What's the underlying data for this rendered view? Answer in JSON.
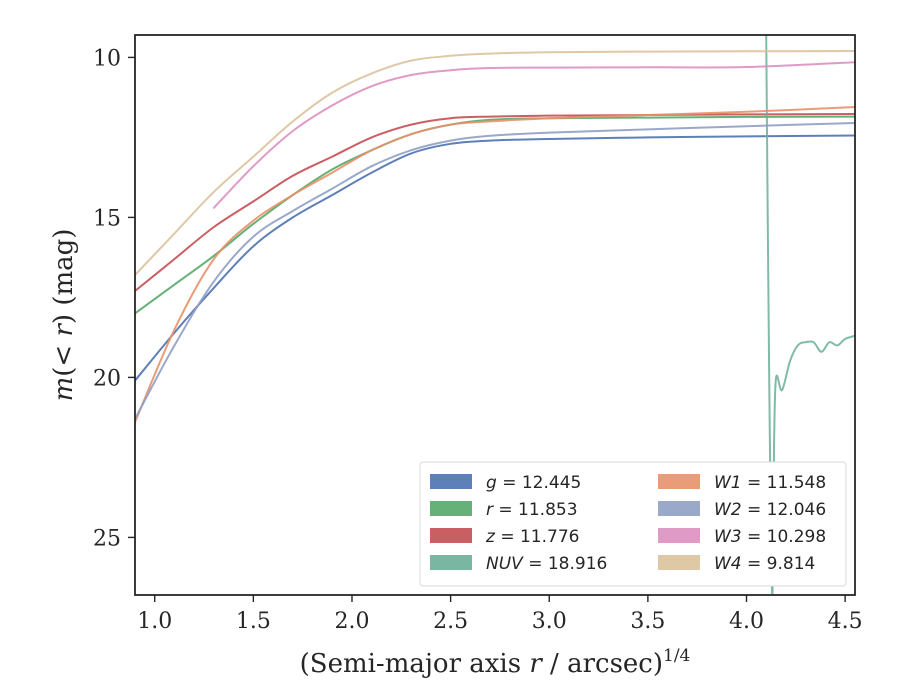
{
  "chart_data": {
    "type": "line",
    "xlabel": "(Semi-major axis r / arcsec)1/4",
    "xlabel_parts": {
      "pre": "(Semi-major axis ",
      "var": "r",
      "post": " / arcsec)",
      "exp": "1/4"
    },
    "ylabel": "m(< r) (mag)",
    "ylabel_parts": {
      "pre": "m",
      "mid": "(< ",
      "var": "r",
      "post": ") (mag)"
    },
    "xlim": [
      0.9,
      4.55
    ],
    "ylim": [
      26.8,
      9.3
    ],
    "y_inverted": true,
    "xticks": [
      1.0,
      1.5,
      2.0,
      2.5,
      3.0,
      3.5,
      4.0,
      4.5
    ],
    "xtick_labels": [
      "1.0",
      "1.5",
      "2.0",
      "2.5",
      "3.0",
      "3.5",
      "4.0",
      "4.5"
    ],
    "yticks": [
      10,
      15,
      20,
      25
    ],
    "ytick_labels": [
      "10",
      "15",
      "20",
      "25"
    ],
    "grid": false,
    "legend_position": "lower-right",
    "legend_columns": 2,
    "series": [
      {
        "name": "g",
        "total": "12.445",
        "color": "#4c72b0",
        "x": [
          0.9,
          1.1,
          1.3,
          1.5,
          1.7,
          1.9,
          2.1,
          2.3,
          2.5,
          2.7,
          3.0,
          3.5,
          4.0,
          4.55
        ],
        "y": [
          20.1,
          18.6,
          17.2,
          15.9,
          15.0,
          14.3,
          13.6,
          13.0,
          12.7,
          12.6,
          12.55,
          12.5,
          12.47,
          12.44
        ]
      },
      {
        "name": "r",
        "total": "11.853",
        "color": "#55a868",
        "x": [
          0.9,
          1.1,
          1.3,
          1.5,
          1.7,
          1.9,
          2.1,
          2.3,
          2.5,
          2.7,
          3.0,
          3.5,
          4.0,
          4.55
        ],
        "y": [
          18.0,
          17.1,
          16.2,
          15.2,
          14.3,
          13.5,
          12.9,
          12.4,
          12.1,
          11.95,
          11.9,
          11.88,
          11.86,
          11.85
        ]
      },
      {
        "name": "z",
        "total": "11.776",
        "color": "#c44e52",
        "x": [
          0.9,
          1.1,
          1.3,
          1.5,
          1.7,
          1.9,
          2.1,
          2.3,
          2.5,
          2.7,
          3.0,
          3.5,
          4.0,
          4.55
        ],
        "y": [
          17.3,
          16.3,
          15.3,
          14.5,
          13.7,
          13.1,
          12.5,
          12.1,
          11.9,
          11.85,
          11.82,
          11.8,
          11.78,
          11.77
        ]
      },
      {
        "name": "NUV",
        "total": "18.916",
        "color": "#6aaf99",
        "x": [
          4.1,
          4.115,
          4.13,
          4.14,
          4.15,
          4.18,
          4.22,
          4.26,
          4.3,
          4.34,
          4.38,
          4.42,
          4.46,
          4.5,
          4.55
        ],
        "y": [
          9.3,
          20.0,
          26.8,
          22.0,
          20.0,
          20.4,
          19.5,
          19.0,
          18.9,
          18.9,
          19.2,
          18.9,
          19.0,
          18.8,
          18.7
        ]
      },
      {
        "name": "W1",
        "total": "11.548",
        "color": "#e8916a",
        "x": [
          0.9,
          1.1,
          1.3,
          1.5,
          1.7,
          1.9,
          2.1,
          2.3,
          2.5,
          2.7,
          3.0,
          3.5,
          4.0,
          4.55
        ],
        "y": [
          21.4,
          18.5,
          16.3,
          15.1,
          14.3,
          13.6,
          12.9,
          12.4,
          12.1,
          12.0,
          11.9,
          11.8,
          11.7,
          11.55
        ]
      },
      {
        "name": "W2",
        "total": "12.046",
        "color": "#8f9ec4",
        "x": [
          0.9,
          1.1,
          1.3,
          1.5,
          1.7,
          1.9,
          2.1,
          2.3,
          2.5,
          2.7,
          3.0,
          3.5,
          4.0,
          4.55
        ],
        "y": [
          21.3,
          19.0,
          17.0,
          15.6,
          14.8,
          14.1,
          13.4,
          12.9,
          12.6,
          12.45,
          12.35,
          12.25,
          12.15,
          12.05
        ]
      },
      {
        "name": "W3",
        "total": "10.298",
        "color": "#dd8fc0",
        "x": [
          1.3,
          1.5,
          1.7,
          1.9,
          2.1,
          2.3,
          2.5,
          2.7,
          3.0,
          3.5,
          4.0,
          4.55
        ],
        "y": [
          14.7,
          13.4,
          12.3,
          11.5,
          10.9,
          10.55,
          10.4,
          10.33,
          10.32,
          10.31,
          10.3,
          10.15
        ]
      },
      {
        "name": "W4",
        "total": "9.814",
        "color": "#dcc29c",
        "x": [
          0.9,
          1.1,
          1.3,
          1.5,
          1.7,
          1.9,
          2.1,
          2.3,
          2.5,
          2.7,
          3.0,
          3.5,
          4.0,
          4.55
        ],
        "y": [
          16.8,
          15.5,
          14.2,
          13.1,
          12.0,
          11.1,
          10.5,
          10.1,
          9.95,
          9.88,
          9.84,
          9.82,
          9.81,
          9.8
        ]
      }
    ]
  }
}
